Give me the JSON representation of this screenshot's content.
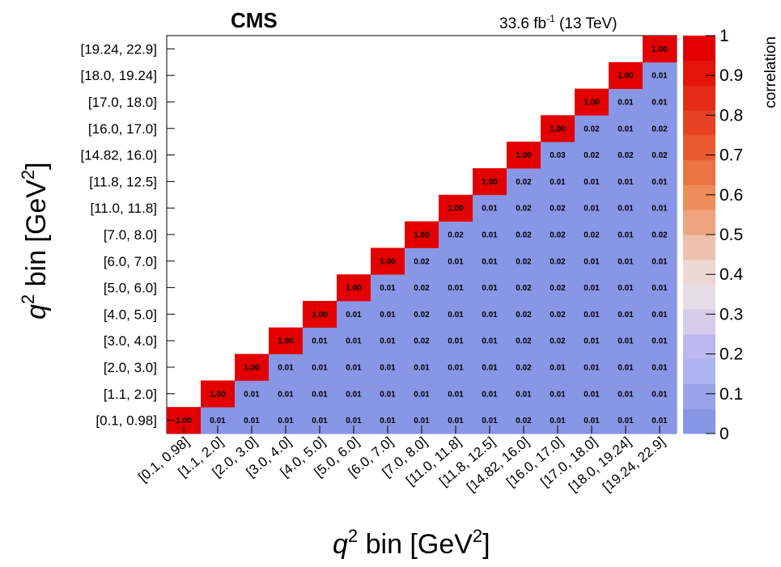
{
  "header": {
    "experiment": "CMS",
    "lumi_value": "33.6 fb",
    "lumi_exponent": "-1",
    "lumi_energy": " (13 TeV)"
  },
  "axes": {
    "x_title_var": "q",
    "x_title_exp": "2",
    "x_title_rest": " bin [GeV",
    "x_title_unit_exp": "2",
    "x_title_close": "]",
    "y_title_var": "q",
    "y_title_exp": "2",
    "y_title_rest": " bin [GeV",
    "y_title_unit_exp": "2",
    "y_title_close": "]"
  },
  "colorbar": {
    "title": "correlation",
    "ticks": [
      "0",
      "0.1",
      "0.2",
      "0.3",
      "0.4",
      "0.5",
      "0.6",
      "0.7",
      "0.8",
      "0.9",
      "1"
    ],
    "palette": [
      "#8896e6",
      "#9aa3ea",
      "#aeb4f0",
      "#bdb9ef",
      "#d4cce8",
      "#e6dde6",
      "#eed6d3",
      "#efc0ac",
      "#eea57f",
      "#ee8d5c",
      "#ec7440",
      "#e85b30",
      "#e64223",
      "#e52b17",
      "#e4140b",
      "#e30000"
    ]
  },
  "chart_data": {
    "type": "heatmap",
    "bins": [
      "[0.1, 0.98]",
      "[1.1, 2.0]",
      "[2.0, 3.0]",
      "[3.0, 4.0]",
      "[4.0, 5.0]",
      "[5.0, 6.0]",
      "[6.0, 7.0]",
      "[7.0, 8.0]",
      "[11.0, 11.8]",
      "[11.8, 12.5]",
      "[14.82, 16.0]",
      "[16.0, 17.0]",
      "[17.0, 18.0]",
      "[18.0, 19.24]",
      "[19.24, 22.9]"
    ],
    "row_order": "bottom-to-top, row i lists correlations for columns i..14",
    "values": [
      [
        "1.00",
        "0.01",
        "0.01",
        "0.01",
        "0.01",
        "0.01",
        "0.01",
        "0.01",
        "0.01",
        "0.01",
        "0.02",
        "0.01",
        "0.01",
        "0.01",
        "0.01"
      ],
      [
        "1.00",
        "0.01",
        "0.01",
        "0.01",
        "0.01",
        "0.01",
        "0.01",
        "0.01",
        "0.01",
        "0.01",
        "0.01",
        "0.01",
        "0.01",
        "0.01"
      ],
      [
        "1.00",
        "0.01",
        "0.01",
        "0.01",
        "0.01",
        "0.01",
        "0.01",
        "0.01",
        "0.02",
        "0.01",
        "0.01",
        "0.01",
        "0.01"
      ],
      [
        "1.00",
        "0.01",
        "0.01",
        "0.01",
        "0.02",
        "0.01",
        "0.01",
        "0.02",
        "0.02",
        "0.01",
        "0.01",
        "0.01"
      ],
      [
        "1.00",
        "0.01",
        "0.01",
        "0.02",
        "0.01",
        "0.01",
        "0.02",
        "0.02",
        "0.01",
        "0.01",
        "0.01"
      ],
      [
        "1.00",
        "0.01",
        "0.02",
        "0.01",
        "0.01",
        "0.02",
        "0.02",
        "0.01",
        "0.01",
        "0.01"
      ],
      [
        "1.00",
        "0.02",
        "0.01",
        "0.01",
        "0.02",
        "0.02",
        "0.01",
        "0.01",
        "0.01"
      ],
      [
        "1.00",
        "0.02",
        "0.01",
        "0.02",
        "0.02",
        "0.02",
        "0.01",
        "0.02"
      ],
      [
        "1.00",
        "0.01",
        "0.02",
        "0.02",
        "0.01",
        "0.01",
        "0.01"
      ],
      [
        "1.00",
        "0.02",
        "0.01",
        "0.01",
        "0.01",
        "0.01"
      ],
      [
        "1.00",
        "0.03",
        "0.02",
        "0.02",
        "0.02"
      ],
      [
        "1.00",
        "0.02",
        "0.01",
        "0.02"
      ],
      [
        "1.00",
        "0.01",
        "0.01"
      ],
      [
        "1.00",
        "0.01"
      ],
      [
        "1.00"
      ]
    ],
    "zlim": [
      0,
      1
    ],
    "zlabel": "correlation",
    "grid": false
  }
}
